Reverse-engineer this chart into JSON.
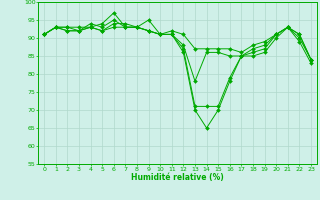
{
  "xlabel": "Humidité relative (%)",
  "background_color": "#cff0e8",
  "grid_color": "#b0d8cc",
  "line_color": "#00aa00",
  "ylim": [
    55,
    100
  ],
  "xlim": [
    -0.5,
    23.5
  ],
  "yticks": [
    55,
    60,
    65,
    70,
    75,
    80,
    85,
    90,
    95,
    100
  ],
  "xticks": [
    0,
    1,
    2,
    3,
    4,
    5,
    6,
    7,
    8,
    9,
    10,
    11,
    12,
    13,
    14,
    15,
    16,
    17,
    18,
    19,
    20,
    21,
    22,
    23
  ],
  "series": [
    [
      91,
      93,
      93,
      93,
      93,
      94,
      97,
      93,
      93,
      95,
      91,
      91,
      86,
      70,
      65,
      70,
      78,
      85,
      85,
      86,
      90,
      93,
      89,
      83
    ],
    [
      91,
      93,
      93,
      92,
      94,
      93,
      95,
      93,
      93,
      92,
      91,
      91,
      87,
      71,
      71,
      71,
      79,
      85,
      86,
      87,
      91,
      93,
      90,
      84
    ],
    [
      91,
      93,
      92,
      92,
      93,
      92,
      94,
      94,
      93,
      92,
      91,
      91,
      88,
      78,
      86,
      86,
      85,
      85,
      87,
      88,
      91,
      93,
      91,
      84
    ],
    [
      91,
      93,
      92,
      92,
      93,
      92,
      93,
      93,
      93,
      92,
      91,
      92,
      91,
      87,
      87,
      87,
      87,
      86,
      88,
      89,
      91,
      93,
      91,
      84
    ]
  ]
}
